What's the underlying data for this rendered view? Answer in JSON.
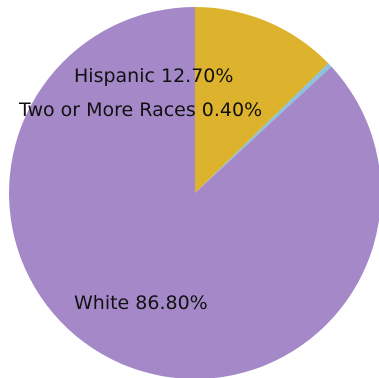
{
  "chart_data": {
    "type": "pie",
    "slices": [
      {
        "label": "Hispanic 12.70%",
        "category": "Hispanic",
        "value": 12.7,
        "color": "#DDB22C"
      },
      {
        "label": "Two or More Races 0.40%",
        "category": "Two or More Races",
        "value": 0.4,
        "color": "#8EC1DA"
      },
      {
        "label": "White 86.80%",
        "category": "White",
        "value": 86.8,
        "color": "#A588C8"
      }
    ],
    "start": "12 o'clock",
    "direction": "clockwise"
  }
}
